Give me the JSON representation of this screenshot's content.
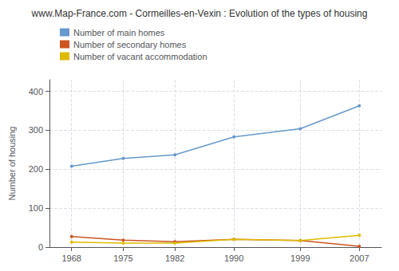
{
  "chart_data": {
    "type": "line",
    "title": "www.Map-France.com - Cormeilles-en-Vexin : Evolution of the types of housing",
    "y_label": "Number of housing",
    "x": [
      1968,
      1975,
      1982,
      1990,
      1999,
      2007
    ],
    "series": [
      {
        "name": "Number of main homes",
        "color": "#6699cc",
        "values": [
          208,
          228,
          237,
          283,
          304,
          363
        ]
      },
      {
        "name": "Number of secondary homes",
        "color": "#cc5522",
        "values": [
          27,
          18,
          14,
          20,
          17,
          2
        ]
      },
      {
        "name": "Number of vacant accommodation",
        "color": "#ddbb00",
        "values": [
          13,
          10,
          10,
          20,
          17,
          30
        ]
      }
    ],
    "xlim": [
      1965,
      2010
    ],
    "xticks": [
      1968,
      1975,
      1982,
      1990,
      1999,
      2007
    ],
    "ylim": [
      0,
      430
    ],
    "yticks": [
      0,
      100,
      200,
      300,
      400
    ],
    "grid": true,
    "legend": "upper left",
    "marker": "circle"
  }
}
